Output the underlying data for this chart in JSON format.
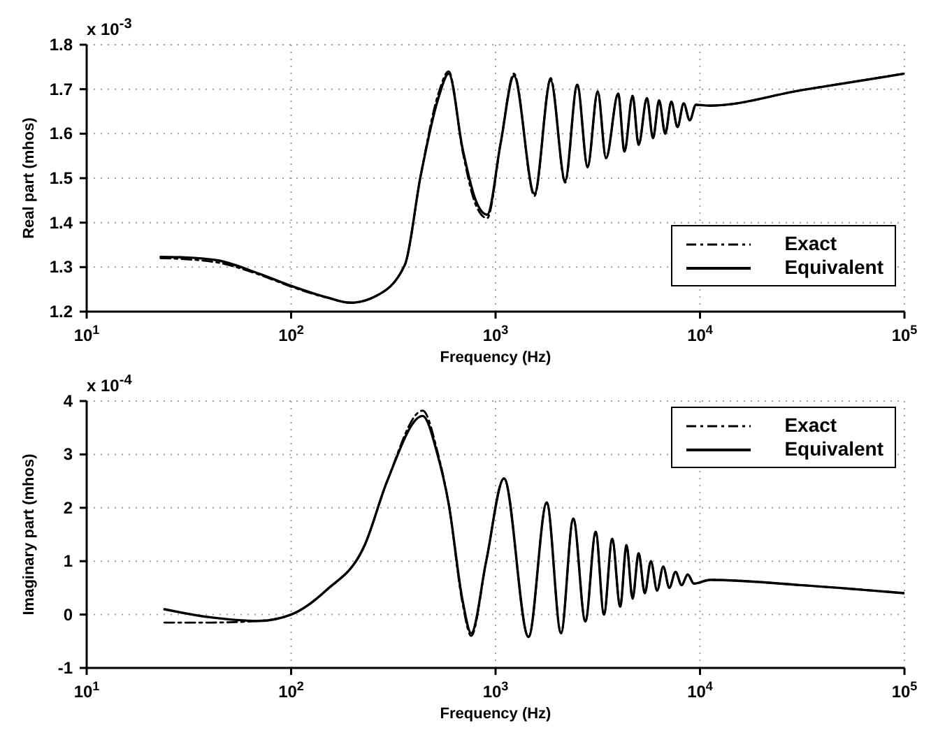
{
  "chart_data": [
    {
      "type": "line",
      "xlabel": "Frequency (Hz)",
      "ylabel": "Real part (mhos)",
      "annotations": [
        "x 10$^{-3}$"
      ],
      "log": "x",
      "grid": true,
      "legend": "bottom right",
      "x": [
        23,
        30,
        44,
        70,
        100,
        150,
        195,
        260,
        360,
        430,
        525,
        590,
        690,
        800,
        910,
        1060,
        1230,
        1550,
        1860,
        2190,
        2510,
        2820,
        3160,
        3470,
        3980,
        4270,
        4680,
        5010,
        5500,
        5890,
        6310,
        6760,
        7240,
        7760,
        8320,
        8910,
        9550,
        11200,
        31600,
        100000
      ],
      "xlim": [
        10,
        100000
      ],
      "xticks": [
        {
          "value": 10,
          "label": "10$^{1}$"
        },
        {
          "value": 100,
          "label": "10$^{2}$"
        },
        {
          "value": 1000,
          "label": "10$^{3}$"
        },
        {
          "value": 10000,
          "label": "10$^{4}$"
        },
        {
          "value": 100000,
          "label": "10$^{5}$"
        }
      ],
      "ylim": [
        1.2,
        1.8
      ],
      "yticks": [
        1.2,
        1.3,
        1.4,
        1.5,
        1.6,
        1.7,
        1.8
      ],
      "series": [
        {
          "name": "Exact",
          "color": "#000000",
          "line_style": "dashed",
          "values": [
            1.32,
            1.318,
            1.31,
            1.283,
            1.256,
            1.231,
            1.22,
            1.235,
            1.305,
            1.505,
            1.69,
            1.74,
            1.56,
            1.44,
            1.41,
            1.58,
            1.735,
            1.46,
            1.725,
            1.49,
            1.71,
            1.524,
            1.695,
            1.545,
            1.69,
            1.56,
            1.685,
            1.575,
            1.68,
            1.59,
            1.675,
            1.6,
            1.672,
            1.615,
            1.668,
            1.63,
            1.665,
            1.663,
            1.698,
            1.735
          ]
        },
        {
          "name": "Equivalent",
          "color": "#000000",
          "line_style": "solid",
          "values": [
            1.323,
            1.322,
            1.315,
            1.285,
            1.258,
            1.232,
            1.22,
            1.235,
            1.305,
            1.505,
            1.68,
            1.735,
            1.566,
            1.45,
            1.418,
            1.58,
            1.73,
            1.465,
            1.72,
            1.495,
            1.71,
            1.526,
            1.695,
            1.545,
            1.69,
            1.56,
            1.685,
            1.575,
            1.68,
            1.59,
            1.675,
            1.6,
            1.672,
            1.615,
            1.668,
            1.63,
            1.665,
            1.663,
            1.698,
            1.735
          ]
        }
      ]
    },
    {
      "type": "line",
      "xlabel": "Frequency (Hz)",
      "ylabel": "Imaginary part (mhos)",
      "annotations": [
        "x 10$^{-4}$"
      ],
      "log": "x",
      "grid": true,
      "legend": "top right",
      "x": [
        24,
        40,
        69,
        100,
        148,
        229,
        295,
        440,
        520,
        590,
        690,
        760,
        900,
        1100,
        1450,
        1780,
        2090,
        2400,
        2750,
        3090,
        3390,
        3720,
        4070,
        4370,
        4680,
        5010,
        5370,
        5750,
        6170,
        6610,
        7080,
        7590,
        8130,
        8710,
        9330,
        11200,
        31600,
        100000
      ],
      "xlim": [
        10,
        100000
      ],
      "xticks": [
        {
          "value": 10,
          "label": "10$^{1}$"
        },
        {
          "value": 100,
          "label": "10$^{2}$"
        },
        {
          "value": 1000,
          "label": "10$^{3}$"
        },
        {
          "value": 10000,
          "label": "10$^{4}$"
        },
        {
          "value": 100000,
          "label": "10$^{5}$"
        }
      ],
      "ylim": [
        -1,
        4
      ],
      "yticks": [
        -1,
        0,
        1,
        2,
        3,
        4
      ],
      "series": [
        {
          "name": "Exact",
          "color": "#000000",
          "line_style": "dashed",
          "values": [
            -0.15,
            -0.15,
            -0.12,
            0.0,
            0.45,
            1.3,
            2.5,
            3.82,
            3.05,
            2.07,
            0.2,
            -0.4,
            1.0,
            2.55,
            -0.42,
            2.1,
            -0.35,
            1.8,
            -0.13,
            1.55,
            0.0,
            1.42,
            0.15,
            1.3,
            0.3,
            1.15,
            0.4,
            1.0,
            0.45,
            0.9,
            0.5,
            0.8,
            0.55,
            0.75,
            0.58,
            0.65,
            0.55,
            0.4
          ]
        },
        {
          "name": "Equivalent",
          "color": "#000000",
          "line_style": "solid",
          "values": [
            0.1,
            -0.05,
            -0.12,
            0.0,
            0.45,
            1.3,
            2.5,
            3.72,
            3.0,
            2.07,
            0.26,
            -0.35,
            1.0,
            2.55,
            -0.42,
            2.1,
            -0.35,
            1.8,
            -0.13,
            1.55,
            0.0,
            1.42,
            0.15,
            1.3,
            0.3,
            1.15,
            0.4,
            1.0,
            0.45,
            0.9,
            0.5,
            0.8,
            0.55,
            0.75,
            0.58,
            0.65,
            0.55,
            0.4
          ]
        }
      ]
    }
  ]
}
